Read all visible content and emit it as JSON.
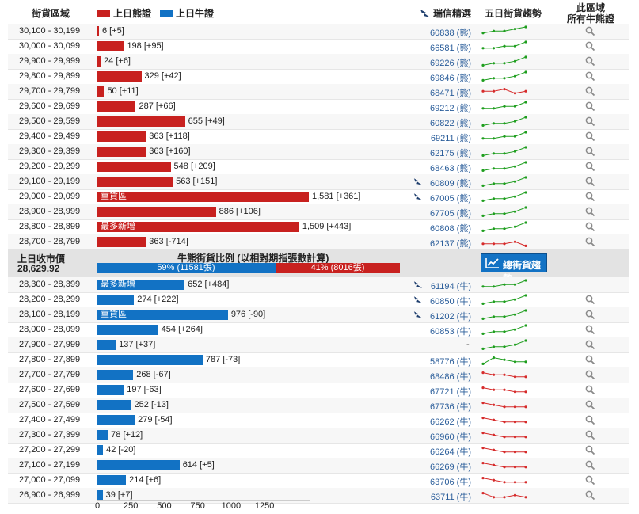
{
  "header": {
    "col_range": "街貨區域",
    "legend_bear": "上日熊證",
    "legend_bull": "上日牛證",
    "col_ubs": "瑞信精選",
    "col_trend": "五日街貨趨勢",
    "col_all_line1": "此區域",
    "col_all_line2": "所有牛熊證"
  },
  "colors": {
    "bear": "#c8211f",
    "bull": "#1272c4",
    "up": "#1e9e1e",
    "down": "#d62b2b"
  },
  "icons": {
    "ubs": "ubs-keys-icon",
    "search": "magnifier-icon",
    "trend": "trend-chart-icon"
  },
  "scale_max": 1581,
  "bear_rows": [
    {
      "range": "30,100 - 30,199",
      "value": 6,
      "label": "6 [+5]",
      "bar_text": "",
      "warrant": "60838 (熊)",
      "ubs": false,
      "trend": [
        3,
        2,
        2,
        1,
        0
      ],
      "up": true,
      "search": true
    },
    {
      "range": "30,000 - 30,099",
      "value": 198,
      "label": "198 [+95]",
      "bar_text": "",
      "warrant": "66581 (熊)",
      "ubs": false,
      "trend": [
        3,
        3,
        2,
        2,
        0
      ],
      "up": true,
      "search": true
    },
    {
      "range": "29,900 - 29,999",
      "value": 24,
      "label": "24 [+6]",
      "bar_text": "",
      "warrant": "69226 (熊)",
      "ubs": false,
      "trend": [
        4,
        3,
        3,
        2,
        0
      ],
      "up": true,
      "search": true
    },
    {
      "range": "29,800 - 29,899",
      "value": 329,
      "label": "329 [+42]",
      "bar_text": "",
      "warrant": "69846 (熊)",
      "ubs": false,
      "trend": [
        4,
        3,
        3,
        2,
        0
      ],
      "up": true,
      "search": true
    },
    {
      "range": "29,700 - 29,799",
      "value": 50,
      "label": "50 [+11]",
      "bar_text": "",
      "warrant": "68471 (熊)",
      "ubs": false,
      "trend": [
        2,
        2,
        1,
        3,
        2
      ],
      "up": false,
      "search": true
    },
    {
      "range": "29,600 - 29,699",
      "value": 287,
      "label": "287 [+66]",
      "bar_text": "",
      "warrant": "69212 (熊)",
      "ubs": false,
      "trend": [
        3,
        3,
        2,
        2,
        0
      ],
      "up": true,
      "search": true
    },
    {
      "range": "29,500 - 29,599",
      "value": 655,
      "label": "655 [+49]",
      "bar_text": "",
      "warrant": "60822 (熊)",
      "ubs": false,
      "trend": [
        4,
        3,
        3,
        2,
        0
      ],
      "up": true,
      "search": true
    },
    {
      "range": "29,400 - 29,499",
      "value": 363,
      "label": "363 [+118]",
      "bar_text": "",
      "warrant": "69211 (熊)",
      "ubs": false,
      "trend": [
        3,
        3,
        2,
        2,
        0
      ],
      "up": true,
      "search": true
    },
    {
      "range": "29,300 - 29,399",
      "value": 363,
      "label": "363 [+160]",
      "bar_text": "",
      "warrant": "62175 (熊)",
      "ubs": false,
      "trend": [
        4,
        3,
        3,
        2,
        0
      ],
      "up": true,
      "search": true
    },
    {
      "range": "29,200 - 29,299",
      "value": 548,
      "label": "548 [+209]",
      "bar_text": "",
      "warrant": "68463 (熊)",
      "ubs": false,
      "trend": [
        4,
        3,
        3,
        2,
        0
      ],
      "up": true,
      "search": true
    },
    {
      "range": "29,100 - 29,199",
      "value": 563,
      "label": "563 [+151]",
      "bar_text": "",
      "warrant": "60809 (熊)",
      "ubs": true,
      "trend": [
        4,
        3,
        3,
        2,
        0
      ],
      "up": true,
      "search": true
    },
    {
      "range": "29,000 - 29,099",
      "value": 1581,
      "label": "1,581 [+361]",
      "bar_text": "重貨區",
      "warrant": "67005 (熊)",
      "ubs": true,
      "trend": [
        4,
        3,
        3,
        2,
        0
      ],
      "up": true,
      "search": true
    },
    {
      "range": "28,900 - 28,999",
      "value": 886,
      "label": "886 [+106]",
      "bar_text": "",
      "warrant": "67705 (熊)",
      "ubs": false,
      "trend": [
        4,
        3,
        3,
        2,
        0
      ],
      "up": true,
      "search": true
    },
    {
      "range": "28,800 - 28,899",
      "value": 1509,
      "label": "1,509 [+443]",
      "bar_text": "最多新增",
      "warrant": "60808 (熊)",
      "ubs": false,
      "trend": [
        4,
        3,
        3,
        2,
        0
      ],
      "up": true,
      "search": true
    },
    {
      "range": "28,700 - 28,799",
      "value": 363,
      "label": "363 [-714]",
      "bar_text": "",
      "warrant": "62137 (熊)",
      "ubs": false,
      "trend": [
        3,
        3,
        3,
        2,
        4
      ],
      "up": false,
      "search": true
    }
  ],
  "mid": {
    "prev_close_label": "上日收市價",
    "prev_close_value": "28,629.92",
    "ratio_title": "牛熊街貨比例 (以相對期指張數計算)",
    "bull_pct": 59,
    "bull_label": "59% (11581張)",
    "bear_label": "41% (8016張)",
    "trend_button": "總街貨趨勢"
  },
  "bull_rows": [
    {
      "range": "28,300 - 28,399",
      "value": 652,
      "label": "652 [+484]",
      "bar_text": "最多新增",
      "warrant": "61194 (牛)",
      "ubs": true,
      "trend": [
        3,
        3,
        2,
        2,
        0
      ],
      "up": true,
      "search": false
    },
    {
      "range": "28,200 - 28,299",
      "value": 274,
      "label": "274 [+222]",
      "bar_text": "",
      "warrant": "60850 (牛)",
      "ubs": true,
      "trend": [
        4,
        3,
        3,
        2,
        0
      ],
      "up": true,
      "search": true
    },
    {
      "range": "28,100 - 28,199",
      "value": 976,
      "label": "976 [-90]",
      "bar_text": "重貨區",
      "warrant": "61202 (牛)",
      "ubs": true,
      "trend": [
        4,
        3,
        3,
        2,
        0
      ],
      "up": true,
      "search": true
    },
    {
      "range": "28,000 - 28,099",
      "value": 454,
      "label": "454 [+264]",
      "bar_text": "",
      "warrant": "60853 (牛)",
      "ubs": false,
      "trend": [
        4,
        3,
        3,
        2,
        0
      ],
      "up": true,
      "search": true
    },
    {
      "range": "27,900 - 27,999",
      "value": 137,
      "label": "137 [+37]",
      "bar_text": "",
      "warrant": "-",
      "ubs": false,
      "trend": [
        4,
        3,
        3,
        2,
        0
      ],
      "up": true,
      "search": true
    },
    {
      "range": "27,800 - 27,899",
      "value": 787,
      "label": "787 [-73]",
      "bar_text": "",
      "warrant": "58776 (牛)",
      "ubs": false,
      "trend": [
        4,
        1,
        2,
        3,
        3
      ],
      "up": true,
      "search": true
    },
    {
      "range": "27,700 - 27,799",
      "value": 268,
      "label": "268 [-67]",
      "bar_text": "",
      "warrant": "68486 (牛)",
      "ubs": false,
      "trend": [
        1,
        2,
        2,
        3,
        3
      ],
      "up": false,
      "search": true
    },
    {
      "range": "27,600 - 27,699",
      "value": 197,
      "label": "197 [-63]",
      "bar_text": "",
      "warrant": "67721 (牛)",
      "ubs": false,
      "trend": [
        1,
        2,
        2,
        3,
        3
      ],
      "up": false,
      "search": true
    },
    {
      "range": "27,500 - 27,599",
      "value": 252,
      "label": "252 [-13]",
      "bar_text": "",
      "warrant": "67736 (牛)",
      "ubs": false,
      "trend": [
        1,
        2,
        3,
        3,
        3
      ],
      "up": false,
      "search": true
    },
    {
      "range": "27,400 - 27,499",
      "value": 279,
      "label": "279 [-54]",
      "bar_text": "",
      "warrant": "66262 (牛)",
      "ubs": false,
      "trend": [
        1,
        2,
        3,
        3,
        3
      ],
      "up": false,
      "search": true
    },
    {
      "range": "27,300 - 27,399",
      "value": 78,
      "label": "78 [+12]",
      "bar_text": "",
      "warrant": "66960 (牛)",
      "ubs": false,
      "trend": [
        1,
        2,
        3,
        3,
        3
      ],
      "up": false,
      "search": true
    },
    {
      "range": "27,200 - 27,299",
      "value": 42,
      "label": "42 [-20]",
      "bar_text": "",
      "warrant": "66264 (牛)",
      "ubs": false,
      "trend": [
        1,
        2,
        3,
        3,
        3
      ],
      "up": false,
      "search": true
    },
    {
      "range": "27,100 - 27,199",
      "value": 614,
      "label": "614 [+5]",
      "bar_text": "",
      "warrant": "66269 (牛)",
      "ubs": false,
      "trend": [
        1,
        2,
        3,
        3,
        3
      ],
      "up": false,
      "search": true
    },
    {
      "range": "27,000 - 27,099",
      "value": 214,
      "label": "214 [+6]",
      "bar_text": "",
      "warrant": "63706 (牛)",
      "ubs": false,
      "trend": [
        1,
        2,
        3,
        3,
        3
      ],
      "up": false,
      "search": true
    },
    {
      "range": "26,900 - 26,999",
      "value": 39,
      "label": "39 [+7]",
      "bar_text": "",
      "warrant": "63711 (牛)",
      "ubs": false,
      "trend": [
        1,
        3,
        3,
        2,
        3
      ],
      "up": false,
      "search": true
    }
  ],
  "axis_ticks": [
    "0",
    "250",
    "500",
    "750",
    "1000",
    "1250"
  ]
}
